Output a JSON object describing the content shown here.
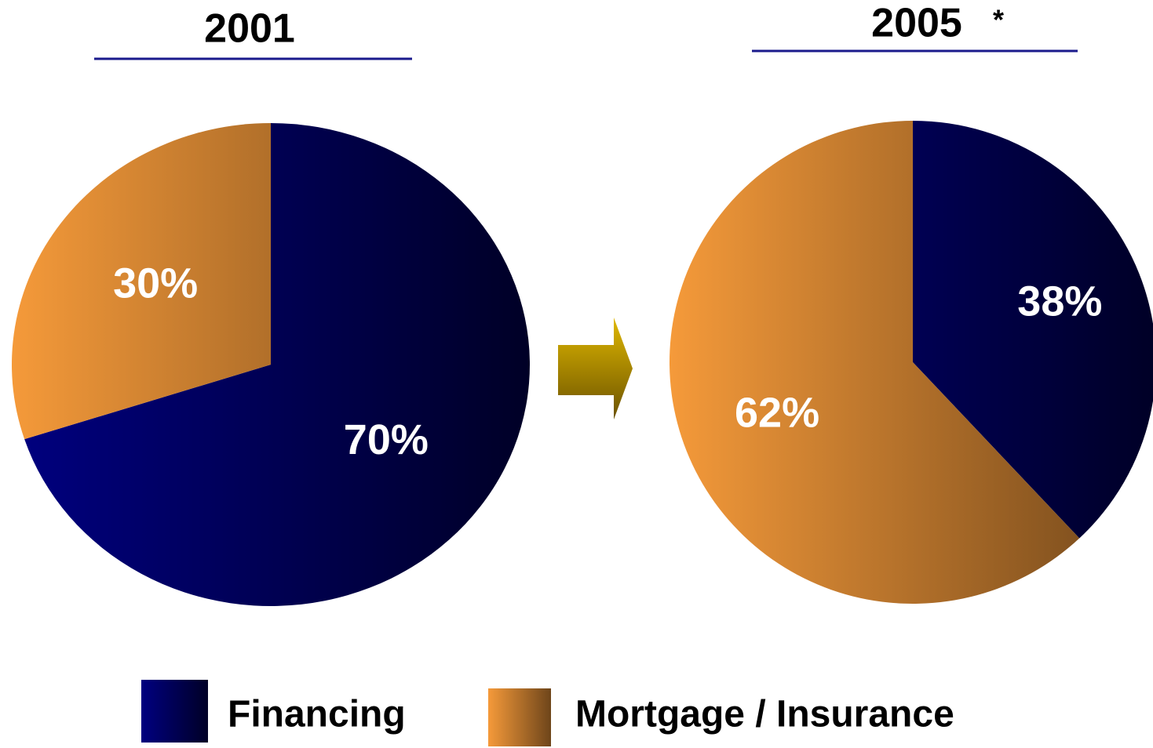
{
  "chart_data": [
    {
      "type": "pie",
      "title": "2001",
      "categories": [
        "Financing",
        "Mortgage / Insurance"
      ],
      "values": [
        70,
        30
      ],
      "value_labels": [
        "70%",
        "30%"
      ],
      "colors": [
        "#000080",
        "#f59a3a"
      ]
    },
    {
      "type": "pie",
      "title": "2005",
      "annotation": "*",
      "categories": [
        "Financing",
        "Mortgage / Insurance"
      ],
      "values": [
        38,
        62
      ],
      "value_labels": [
        "38%",
        "62%"
      ],
      "colors": [
        "#000080",
        "#f59a3a"
      ]
    }
  ]
}
